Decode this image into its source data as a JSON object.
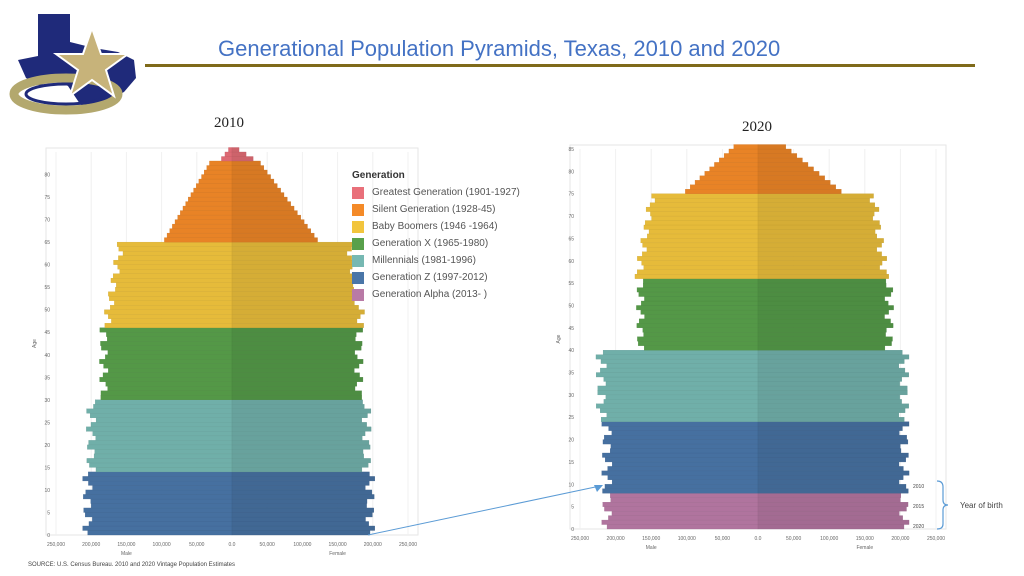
{
  "header": {
    "title": "Generational Population Pyramids, Texas, 2010 and 2020"
  },
  "colors": {
    "greatest": "#e9707a",
    "silent": "#f48a28",
    "boomers": "#f2c53d",
    "genx": "#58a04b",
    "millennials": "#76b8b2",
    "genz": "#4a76a8",
    "alpha": "#b97aa6",
    "title": "#4472c4",
    "rule": "#7f6a1a",
    "annotation": "#5b9bd5"
  },
  "legend": {
    "title": "Generation",
    "items": [
      {
        "label": "Greatest Generation (1901-1927)",
        "color": "#e9707a"
      },
      {
        "label": "Silent Generation (1928-45)",
        "color": "#f48a28"
      },
      {
        "label": "Baby Boomers (1946 -1964)",
        "color": "#f2c53d"
      },
      {
        "label": "Generation X (1965-1980)",
        "color": "#58a04b"
      },
      {
        "label": "Millennials (1981-1996)",
        "color": "#76b8b2"
      },
      {
        "label": "Generation Z (1997-2012)",
        "color": "#4a76a8"
      },
      {
        "label": "Generation Alpha (2013- )",
        "color": "#b97aa6"
      }
    ]
  },
  "annotation": {
    "year_labels": [
      "2010",
      "2015",
      "2020"
    ],
    "note": "Year of birth"
  },
  "source": "SOURCE: U.S. Census Bureau. 2010 and 2020 Vintage Population Estimates",
  "chart_data": [
    {
      "type": "bar",
      "title": "2010",
      "xlabel_left": "Male",
      "xlabel_right": "Female",
      "ylabel": "Age",
      "x_ticks": [
        "250,000",
        "200,000",
        "150,000",
        "100,000",
        "50,000",
        "0.0",
        "50,000",
        "100,000",
        "150,000",
        "200,000",
        "250,000"
      ],
      "xlim": [
        -250000,
        250000
      ],
      "ylim": [
        0,
        85
      ],
      "y_ticks": [
        "0",
        "5",
        "10",
        "15",
        "20",
        "25",
        "30",
        "35",
        "40",
        "45",
        "50",
        "55",
        "60",
        "65",
        "70",
        "75",
        "80"
      ],
      "series": [
        {
          "name": "Generation Z",
          "age_range": [
            0,
            13
          ],
          "male": 205000,
          "female": 196000
        },
        {
          "name": "Millennials",
          "age_range": [
            14,
            29
          ],
          "male": 200000,
          "female": 191000
        },
        {
          "name": "Generation X",
          "age_range": [
            30,
            45
          ],
          "male": 182000,
          "female": 180000
        },
        {
          "name": "Baby Boomers",
          "age_range": [
            46,
            64
          ],
          "male": 170000,
          "female": 176000
        },
        {
          "name": "Silent Generation",
          "age_range": [
            65,
            82
          ],
          "male": 64000,
          "female": 81000
        },
        {
          "name": "Greatest Generation",
          "age_range": [
            83,
            85
          ],
          "male": 10000,
          "female": 20000
        }
      ]
    },
    {
      "type": "bar",
      "title": "2020",
      "xlabel_left": "Male",
      "xlabel_right": "Female",
      "ylabel": "Age",
      "x_ticks": [
        "250,000",
        "200,000",
        "150,000",
        "100,000",
        "50,000",
        "0.0",
        "50,000",
        "100,000",
        "150,000",
        "200,000",
        "250,000"
      ],
      "xlim": [
        -250000,
        250000
      ],
      "ylim": [
        0,
        85
      ],
      "y_ticks": [
        "0",
        "5",
        "10",
        "15",
        "20",
        "25",
        "30",
        "35",
        "40",
        "45",
        "50",
        "55",
        "60",
        "65",
        "70",
        "75",
        "80",
        "85"
      ],
      "series": [
        {
          "name": "Generation Alpha",
          "age_range": [
            0,
            7
          ],
          "male": 212000,
          "female": 205000
        },
        {
          "name": "Generation Z",
          "age_range": [
            8,
            23
          ],
          "male": 212000,
          "female": 205000
        },
        {
          "name": "Millennials",
          "age_range": [
            24,
            39
          ],
          "male": 220000,
          "female": 205000
        },
        {
          "name": "Generation X",
          "age_range": [
            40,
            55
          ],
          "male": 165000,
          "female": 184000
        },
        {
          "name": "Baby Boomers",
          "age_range": [
            56,
            74
          ],
          "male": 160000,
          "female": 170000
        },
        {
          "name": "Silent Generation",
          "age_range": [
            75,
            85
          ],
          "male": 68000,
          "female": 78000
        }
      ]
    }
  ]
}
